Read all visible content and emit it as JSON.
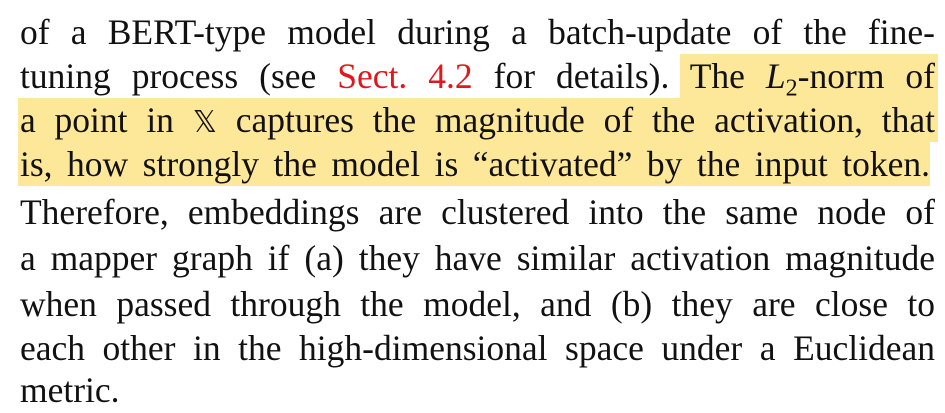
{
  "paragraph": {
    "line1": "of a BERT-type model during a batch-update of the fine-",
    "line2_before_link": "tuning process (see ",
    "line2_link": "Sect. 4.2",
    "line2_after_link": " for details). ",
    "line2_hl_start": "The ",
    "line2_math_L": "L",
    "line2_math_sub": "2",
    "line2_hl_end": "-norm of",
    "line3_before": "a point in ",
    "line3_symbol": "𝕏",
    "line3_after": " captures the magnitude of the activation, that",
    "line4": "is, how strongly the model is “activated” by the input token.",
    "line5": "Therefore, embeddings are clustered into the same node of",
    "line6": "a mapper graph if (a) they have similar activation magnitude",
    "line7": "when passed through the model, and (b) they are close to",
    "line8": "each other in the high-dimensional space under a Euclidean",
    "line9": "metric."
  },
  "colors": {
    "highlight": "#fde89a",
    "link": "#e0171c",
    "text": "#111111"
  }
}
